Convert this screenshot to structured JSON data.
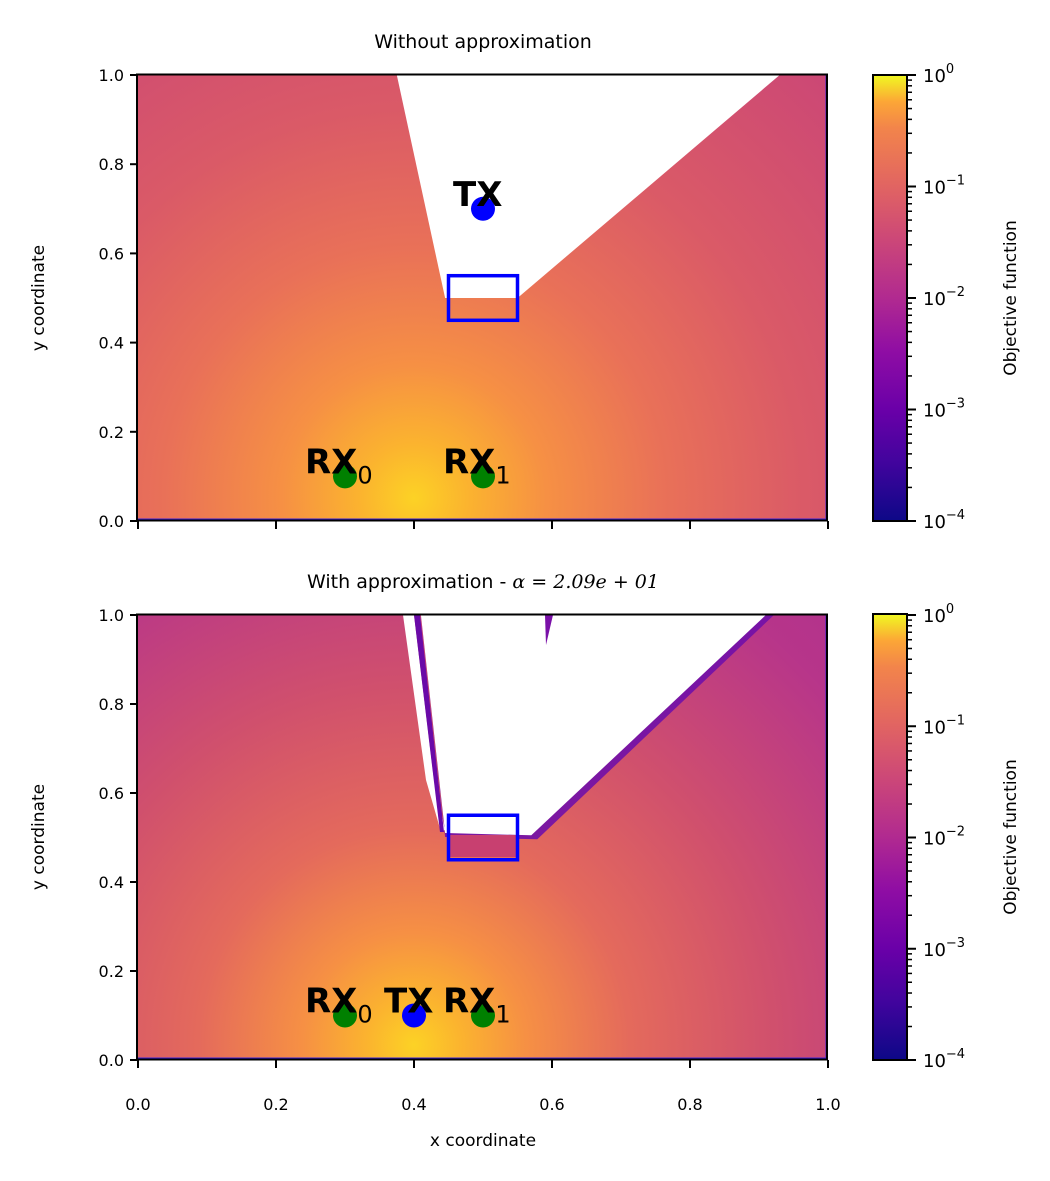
{
  "chart_data": [
    {
      "type": "heatmap",
      "title": "Without approximation",
      "xlabel": "",
      "ylabel": "y coordinate",
      "xlim": [
        0,
        1
      ],
      "ylim": [
        0,
        1
      ],
      "xticks": [
        0.0,
        0.2,
        0.4,
        0.6,
        0.8,
        1.0
      ],
      "xtick_labels_shown": false,
      "yticks": [
        "0.0",
        "0.2",
        "0.4",
        "0.6",
        "0.8",
        "1.0"
      ],
      "colormap": "plasma",
      "colorbar": {
        "label": "Objective function",
        "scale": "log",
        "range": [
          0.0001,
          1
        ],
        "ticks": [
          {
            "base": "10",
            "exp": "0"
          },
          {
            "base": "10",
            "exp": "−1"
          },
          {
            "base": "10",
            "exp": "−2"
          },
          {
            "base": "10",
            "exp": "−3"
          },
          {
            "base": "10",
            "exp": "−4"
          }
        ]
      },
      "heat_peak": {
        "x": 0.4,
        "y": 0.05
      },
      "shadow_region_polygon": [
        [
          0.375,
          1.0
        ],
        [
          0.445,
          0.5
        ],
        [
          0.55,
          0.5
        ],
        [
          0.93,
          1.0
        ]
      ],
      "obstacle": {
        "x0": 0.45,
        "x1": 0.55,
        "y0": 0.45,
        "y1": 0.55,
        "color": "#0000ff"
      },
      "points": [
        {
          "label": "TX",
          "sub": "",
          "x": 0.5,
          "y": 0.7,
          "color": "#0000ff"
        },
        {
          "label": "RX",
          "sub": "0",
          "x": 0.3,
          "y": 0.1,
          "color": "#008000"
        },
        {
          "label": "RX",
          "sub": "1",
          "x": 0.5,
          "y": 0.1,
          "color": "#008000"
        }
      ]
    },
    {
      "type": "heatmap",
      "title": "With approximation - ",
      "title_math": "α = 2.09e + 01",
      "xlabel": "x coordinate",
      "ylabel": "y coordinate",
      "xlim": [
        0,
        1
      ],
      "ylim": [
        0,
        1
      ],
      "xticks": [
        "0.0",
        "0.2",
        "0.4",
        "0.6",
        "0.8",
        "1.0"
      ],
      "yticks": [
        "0.0",
        "0.2",
        "0.4",
        "0.6",
        "0.8",
        "1.0"
      ],
      "colormap": "plasma",
      "colorbar": {
        "label": "Objective function",
        "scale": "log",
        "range": [
          0.0001,
          1
        ],
        "ticks": [
          {
            "base": "10",
            "exp": "0"
          },
          {
            "base": "10",
            "exp": "−1"
          },
          {
            "base": "10",
            "exp": "−2"
          },
          {
            "base": "10",
            "exp": "−3"
          },
          {
            "base": "10",
            "exp": "−4"
          }
        ]
      },
      "heat_peak": {
        "x": 0.4,
        "y": 0.03
      },
      "shadow_region_polygon": [
        [
          0.41,
          1.0
        ],
        [
          0.445,
          0.51
        ],
        [
          0.57,
          0.505
        ],
        [
          0.91,
          1.0
        ]
      ],
      "obstacle": {
        "x0": 0.45,
        "x1": 0.55,
        "y0": 0.45,
        "y1": 0.55,
        "color": "#0000ff"
      },
      "points": [
        {
          "label": "TX",
          "sub": "",
          "x": 0.4,
          "y": 0.1,
          "color": "#0000ff"
        },
        {
          "label": "RX",
          "sub": "0",
          "x": 0.3,
          "y": 0.1,
          "color": "#008000"
        },
        {
          "label": "RX",
          "sub": "1",
          "x": 0.5,
          "y": 0.1,
          "color": "#008000"
        }
      ]
    }
  ]
}
